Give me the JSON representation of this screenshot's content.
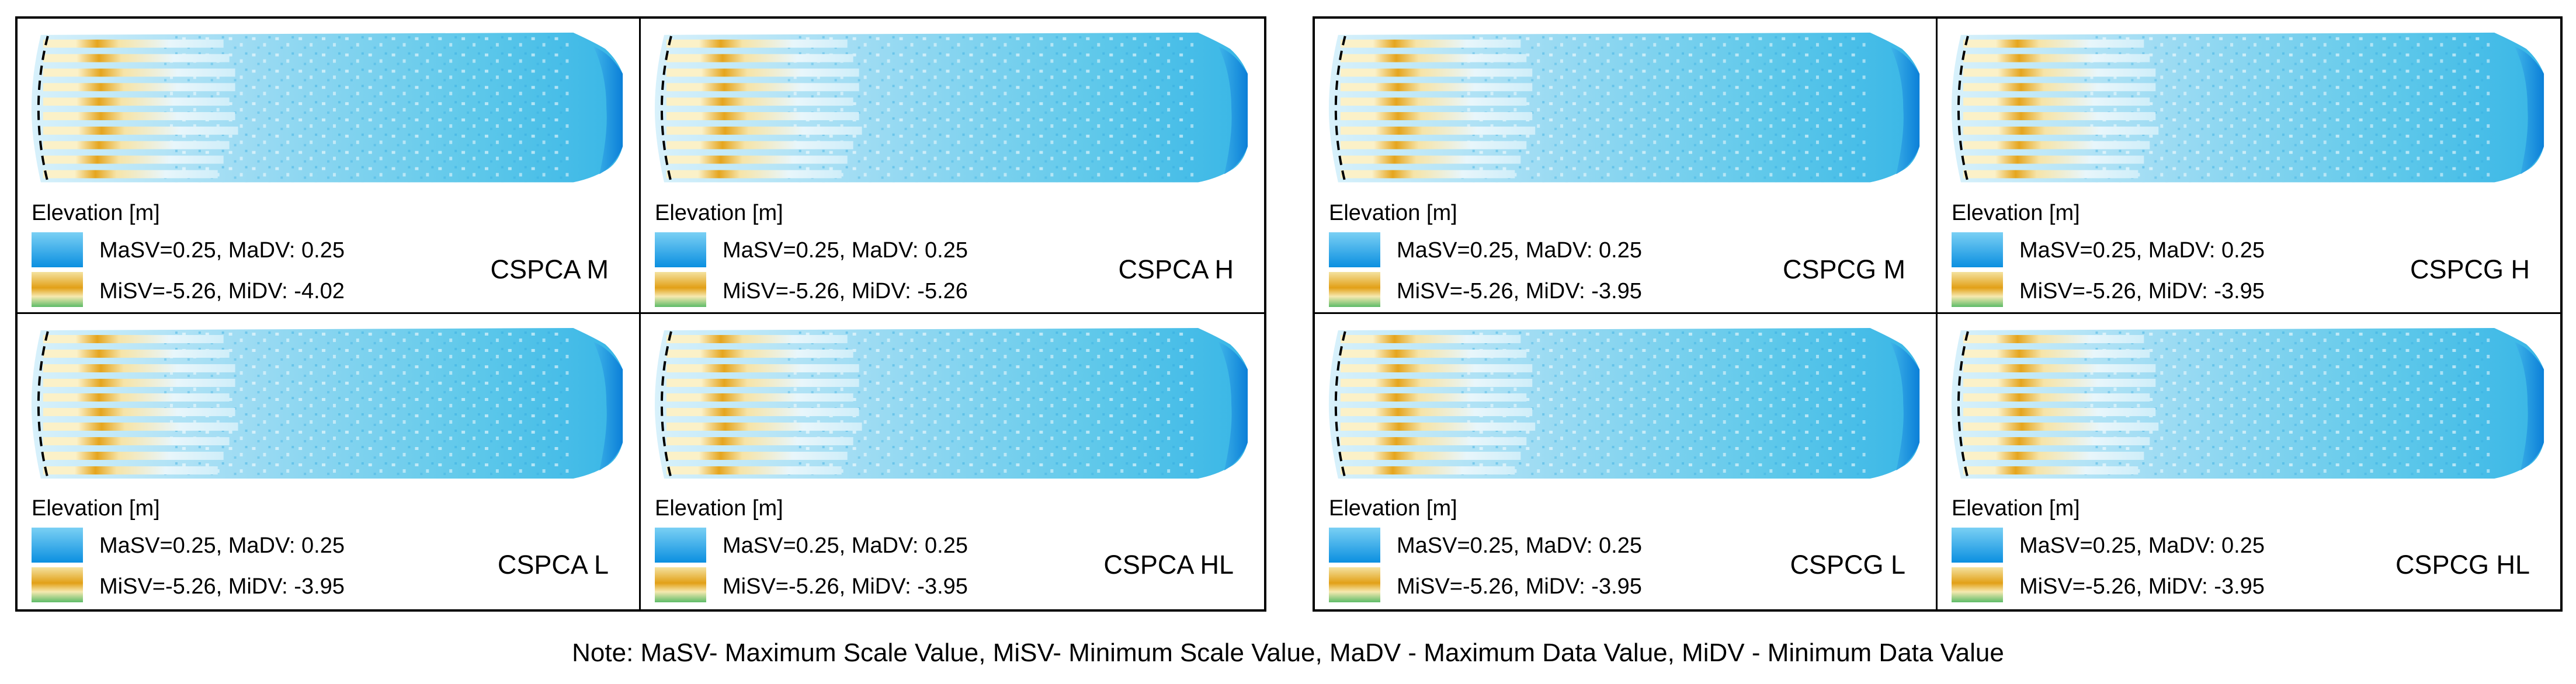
{
  "elevation_label": "Elevation [m]",
  "colors": {
    "high_blue": "#0b8fe0",
    "mid_cyan": "#4cc3e8",
    "low_yellow": "#e2a017",
    "low_green": "#5dbb68"
  },
  "groups": [
    {
      "id": "cspca",
      "panels": [
        {
          "label": "CSPCA M",
          "max_text": "MaSV=0.25, MaDV: 0.25",
          "min_text": "MiSV=-5.26, MiDV: -4.02"
        },
        {
          "label": "CSPCA H",
          "max_text": "MaSV=0.25, MaDV: 0.25",
          "min_text": "MiSV=-5.26, MiDV: -5.26"
        },
        {
          "label": "CSPCA L",
          "max_text": "MaSV=0.25, MaDV: 0.25",
          "min_text": "MiSV=-5.26, MiDV: -3.95"
        },
        {
          "label": "CSPCA HL",
          "max_text": "MaSV=0.25, MaDV: 0.25",
          "min_text": "MiSV=-5.26, MiDV: -3.95"
        }
      ]
    },
    {
      "id": "cspcg",
      "panels": [
        {
          "label": "CSPCG M",
          "max_text": "MaSV=0.25, MaDV: 0.25",
          "min_text": "MiSV=-5.26, MiDV: -3.95"
        },
        {
          "label": "CSPCG H",
          "max_text": "MaSV=0.25, MaDV: 0.25",
          "min_text": "MiSV=-5.26, MiDV: -3.95"
        },
        {
          "label": "CSPCG L",
          "max_text": "MaSV=0.25, MaDV: 0.25",
          "min_text": "MiSV=-5.26, MiDV: -3.95"
        },
        {
          "label": "CSPCG HL",
          "max_text": "MaSV=0.25, MaDV: 0.25",
          "min_text": "MiSV=-5.26, MiDV: -3.95"
        }
      ]
    }
  ],
  "note": "Note: MaSV- Maximum Scale Value, MiSV- Minimum Scale Value, MaDV - Maximum Data Value, MiDV - Minimum Data Value"
}
